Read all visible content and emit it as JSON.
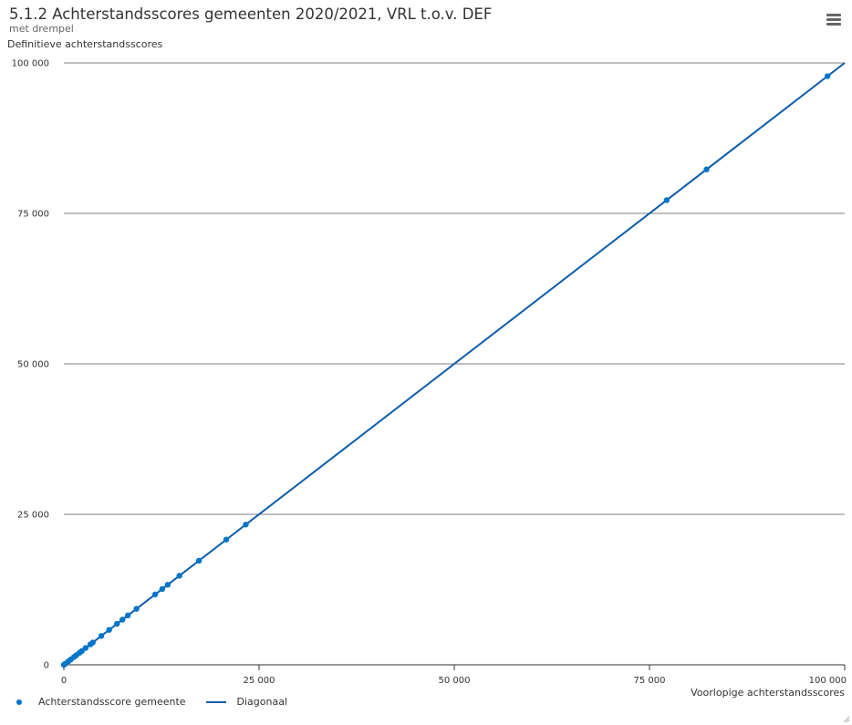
{
  "header": {
    "title": "5.1.2 Achterstandsscores gemeenten 2020/2021, VRL t.o.v. DEF",
    "subtitle": "met drempel",
    "menu_icon": "hamburger-menu-icon"
  },
  "colors": {
    "series": "#0075c9",
    "line": "#0b5dab",
    "grid": "#7f7f7f"
  },
  "chart_data": {
    "type": "scatter",
    "ylabel": "Definitieve achterstandsscores",
    "xlabel": "Voorlopige achterstandsscores",
    "xlim": [
      0,
      100000
    ],
    "ylim": [
      0,
      100000
    ],
    "x_ticks": [
      0,
      25000,
      50000,
      75000,
      100000
    ],
    "y_ticks": [
      0,
      25000,
      50000,
      75000,
      100000
    ],
    "x_tick_labels": [
      "0",
      "25 000",
      "50 000",
      "75 000",
      "100 000"
    ],
    "y_tick_labels": [
      "0",
      "25 000",
      "50 000",
      "75 000",
      "100 000"
    ],
    "grid": true,
    "legend_position": "bottom-left",
    "series": [
      {
        "name": "Achterstandsscore gemeente",
        "type": "scatter",
        "points": [
          [
            0,
            0
          ],
          [
            200,
            200
          ],
          [
            600,
            600
          ],
          [
            900,
            900
          ],
          [
            1300,
            1300
          ],
          [
            1600,
            1600
          ],
          [
            2000,
            2000
          ],
          [
            2300,
            2300
          ],
          [
            2800,
            2800
          ],
          [
            3400,
            3400
          ],
          [
            3700,
            3700
          ],
          [
            4800,
            4800
          ],
          [
            5800,
            5800
          ],
          [
            6800,
            6800
          ],
          [
            7500,
            7500
          ],
          [
            8200,
            8200
          ],
          [
            9300,
            9300
          ],
          [
            11700,
            11700
          ],
          [
            12600,
            12600
          ],
          [
            13300,
            13300
          ],
          [
            14800,
            14800
          ],
          [
            17300,
            17300
          ],
          [
            20800,
            20800
          ],
          [
            23300,
            23300
          ],
          [
            77200,
            77200
          ],
          [
            82300,
            82300
          ],
          [
            97800,
            97800
          ]
        ]
      },
      {
        "name": "Diagonaal",
        "type": "line",
        "points": [
          [
            0,
            0
          ],
          [
            100000,
            100000
          ]
        ]
      }
    ]
  }
}
